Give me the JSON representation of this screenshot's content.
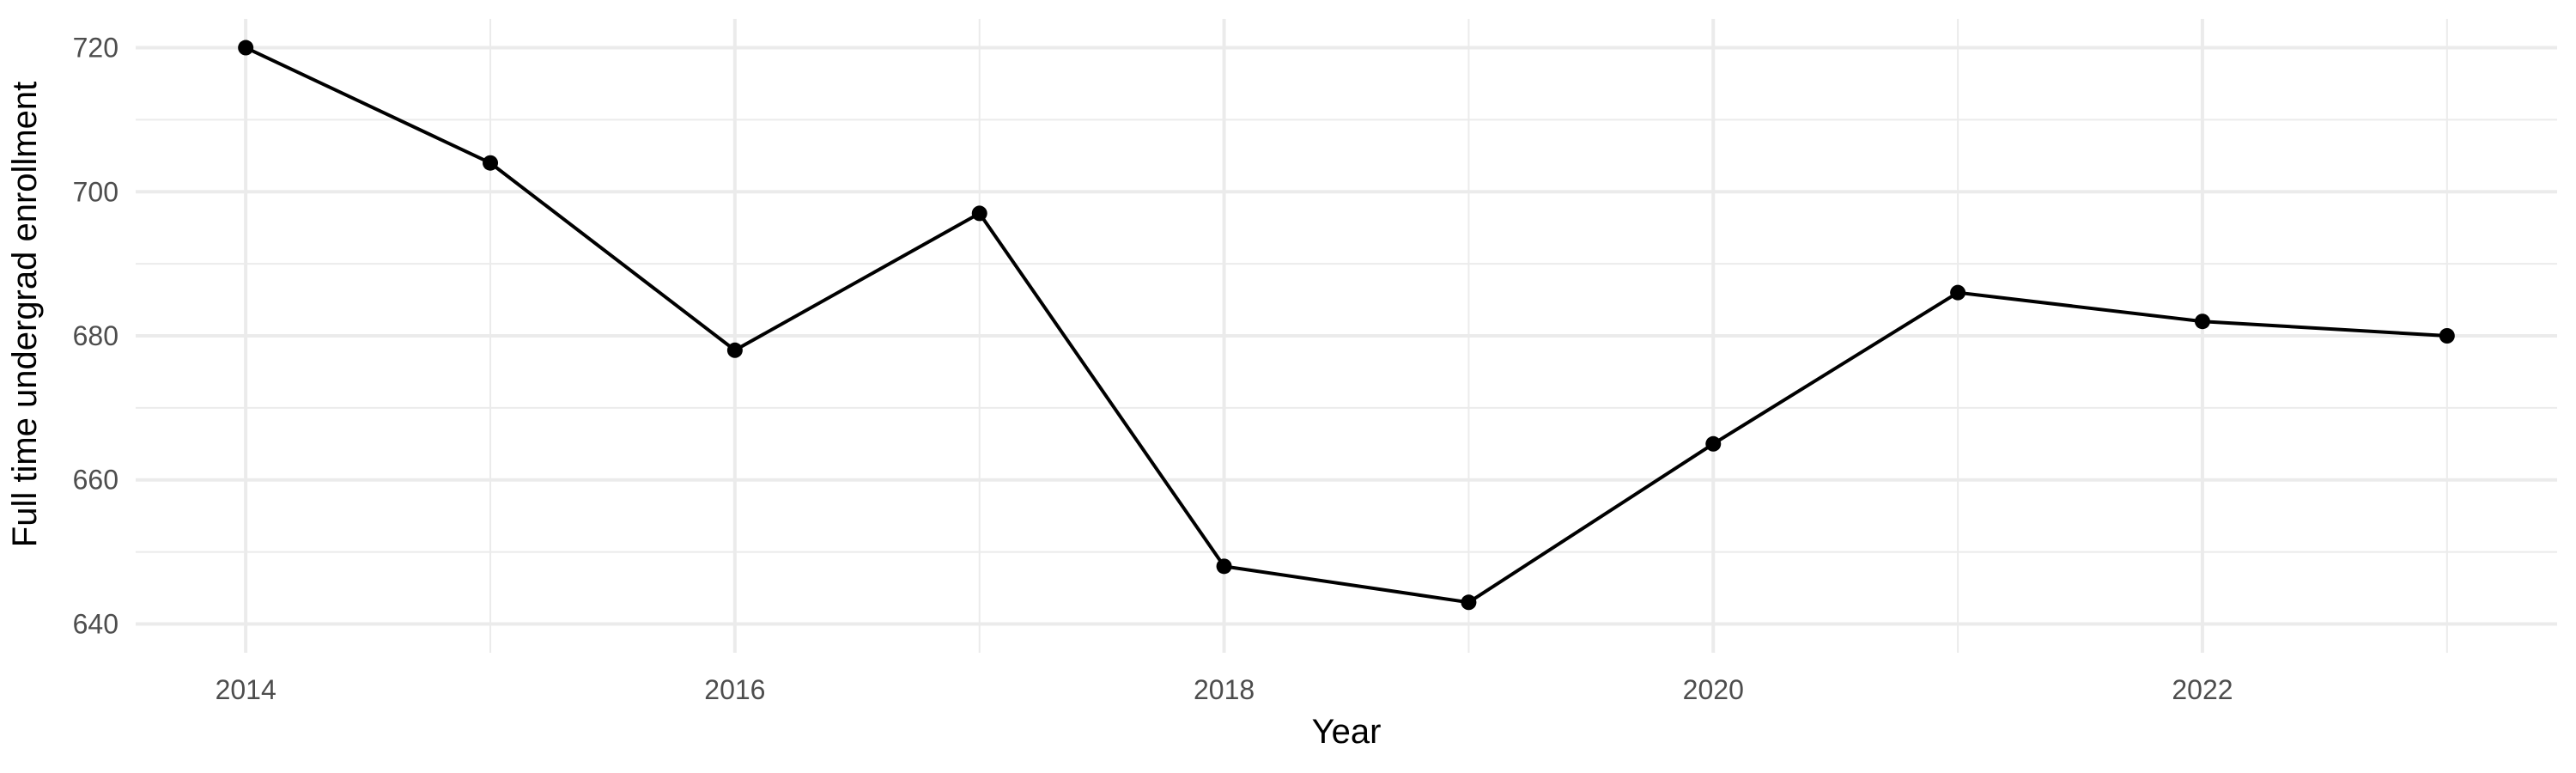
{
  "chart_data": {
    "type": "line",
    "title": "",
    "xlabel": "Year",
    "ylabel": "Full time undergrad enrollment",
    "x": [
      2014,
      2015,
      2016,
      2017,
      2018,
      2019,
      2020,
      2021,
      2022,
      2023
    ],
    "series": [
      {
        "values": [
          720,
          704,
          678,
          697,
          648,
          643,
          665,
          686,
          682,
          680
        ]
      }
    ],
    "xlim": [
      2013.55,
      2023.45
    ],
    "ylim": [
      636,
      724
    ],
    "x_ticks": [
      2014,
      2016,
      2018,
      2020,
      2022
    ],
    "y_ticks": [
      640,
      660,
      680,
      700,
      720
    ],
    "x_minor_ticks": [
      2015,
      2017,
      2019,
      2021,
      2023
    ],
    "y_minor_ticks": [
      650,
      670,
      690,
      710
    ],
    "grid": true,
    "legend": "none",
    "colors": {
      "line": "#000000",
      "point": "#000000",
      "grid": "#ebebeb",
      "tick_text": "#4d4d4d",
      "axis_title": "#000000"
    }
  }
}
